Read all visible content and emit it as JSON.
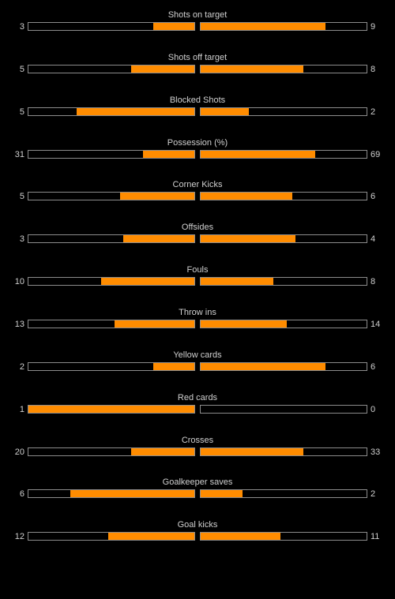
{
  "colors": {
    "background": "#000000",
    "bar_fill": "#ff8c00",
    "bar_border": "#8c8c8c",
    "text": "#d0d0d0"
  },
  "stats": [
    {
      "label": "Shots on target",
      "home": "3",
      "away": "9",
      "home_fraction": 0.25,
      "away_fraction": 0.75
    },
    {
      "label": "Shots off target",
      "home": "5",
      "away": "8",
      "home_fraction": 0.38,
      "away_fraction": 0.62
    },
    {
      "label": "Blocked Shots",
      "home": "5",
      "away": "2",
      "home_fraction": 0.71,
      "away_fraction": 0.29
    },
    {
      "label": "Possession (%)",
      "home": "31",
      "away": "69",
      "home_fraction": 0.31,
      "away_fraction": 0.69
    },
    {
      "label": "Corner Kicks",
      "home": "5",
      "away": "6",
      "home_fraction": 0.45,
      "away_fraction": 0.55
    },
    {
      "label": "Offsides",
      "home": "3",
      "away": "4",
      "home_fraction": 0.43,
      "away_fraction": 0.57
    },
    {
      "label": "Fouls",
      "home": "10",
      "away": "8",
      "home_fraction": 0.56,
      "away_fraction": 0.44
    },
    {
      "label": "Throw ins",
      "home": "13",
      "away": "14",
      "home_fraction": 0.48,
      "away_fraction": 0.52
    },
    {
      "label": "Yellow cards",
      "home": "2",
      "away": "6",
      "home_fraction": 0.25,
      "away_fraction": 0.75
    },
    {
      "label": "Red cards",
      "home": "1",
      "away": "0",
      "home_fraction": 1.0,
      "away_fraction": 0.0
    },
    {
      "label": "Crosses",
      "home": "20",
      "away": "33",
      "home_fraction": 0.38,
      "away_fraction": 0.62
    },
    {
      "label": "Goalkeeper saves",
      "home": "6",
      "away": "2",
      "home_fraction": 0.75,
      "away_fraction": 0.25
    },
    {
      "label": "Goal kicks",
      "home": "12",
      "away": "11",
      "home_fraction": 0.52,
      "away_fraction": 0.48
    }
  ]
}
